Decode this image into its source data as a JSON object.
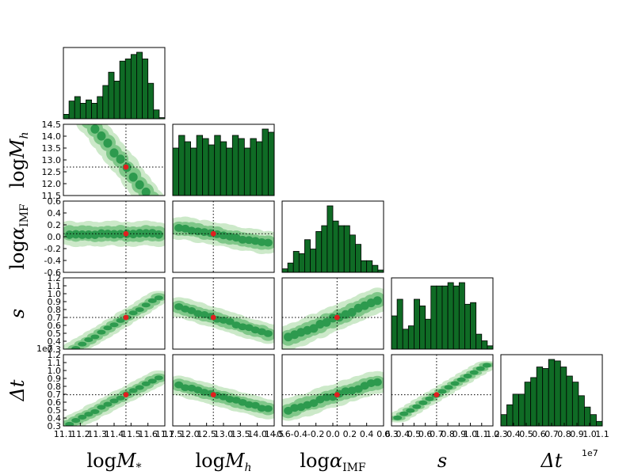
{
  "chart_data": {
    "type": "corner",
    "parameters": [
      {
        "key": "logMs",
        "label_main": "log",
        "label_var": "M",
        "label_sub": "*",
        "range": [
          11.1,
          11.7
        ],
        "ticks": [
          "11.1",
          "11.2",
          "11.3",
          "11.4",
          "11.5",
          "11.6",
          "11.7"
        ]
      },
      {
        "key": "logMh",
        "label_main": "log",
        "label_var": "M",
        "label_sub": "h",
        "range": [
          11.5,
          14.5
        ],
        "ticks": [
          "11.5",
          "12.0",
          "12.5",
          "13.0",
          "13.5",
          "14.0",
          "14.5"
        ]
      },
      {
        "key": "logaIMF",
        "label_main": "log",
        "label_var": "α",
        "label_sub": "IMF",
        "range": [
          -0.6,
          0.6
        ],
        "ticks": [
          "-0.6",
          "-0.4",
          "-0.2",
          "0.0",
          "0.2",
          "0.4",
          "0.6"
        ]
      },
      {
        "key": "s",
        "label_main": "",
        "label_var": "s",
        "label_sub": "",
        "range": [
          0.3,
          1.2
        ],
        "ticks": [
          "0.3",
          "0.4",
          "0.5",
          "0.6",
          "0.7",
          "0.8",
          "0.9",
          "1.0",
          "1.1",
          "1.2"
        ]
      },
      {
        "key": "dt",
        "label_main": "",
        "label_var": "Δt",
        "label_sub": "",
        "range": [
          0.3,
          1.1
        ],
        "ticks": [
          "0.3",
          "0.4",
          "0.5",
          "0.6",
          "0.7",
          "0.8",
          "0.9",
          "1.0",
          "1.1"
        ],
        "ytick_max": "1.2",
        "offset": "1e7"
      }
    ],
    "truth": [
      11.47,
      12.7,
      0.05,
      0.7,
      0.65
    ],
    "histograms": [
      [
        4,
        16,
        20,
        14,
        17,
        14,
        20,
        30,
        42,
        34,
        52,
        54,
        58,
        60,
        54,
        32,
        8,
        1
      ],
      [
        30,
        38,
        34,
        30,
        38,
        36,
        32,
        38,
        34,
        30,
        38,
        36,
        30,
        36,
        34,
        42,
        40
      ],
      [
        3,
        8,
        18,
        16,
        28,
        20,
        35,
        40,
        57,
        44,
        40,
        40,
        32,
        24,
        10,
        10,
        6,
        2
      ],
      [
        20,
        30,
        12,
        14,
        30,
        26,
        18,
        38,
        38,
        38,
        40,
        38,
        40,
        27,
        28,
        9,
        5,
        2
      ],
      [
        15,
        28,
        42,
        42,
        58,
        64,
        78,
        76,
        88,
        86,
        78,
        66,
        58,
        40,
        25,
        15,
        6
      ]
    ],
    "joint_params": {
      "1_0": {
        "slope": -9.0,
        "spread": 0.35
      },
      "2_0": {
        "slope": 0.0,
        "spread": 0.13
      },
      "2_1": {
        "slope": -0.1,
        "spread": 0.12
      },
      "3_0": {
        "slope": 1.3,
        "spread": 0.05
      },
      "3_1": {
        "slope": -0.13,
        "spread": 0.08
      },
      "3_2": {
        "slope": 0.45,
        "spread": 0.1
      },
      "4_0": {
        "slope": 1.0,
        "spread": 0.05
      },
      "4_1": {
        "slope": -0.1,
        "spread": 0.07
      },
      "4_2": {
        "slope": 0.3,
        "spread": 0.08
      },
      "4_3": {
        "slope": 0.75,
        "spread": 0.03
      }
    },
    "colors": {
      "hist": "#0f6b25",
      "level1": "#cce9c9",
      "level2": "#80c789",
      "level3": "#2d9a4e",
      "truth": "#e01f1f"
    }
  }
}
